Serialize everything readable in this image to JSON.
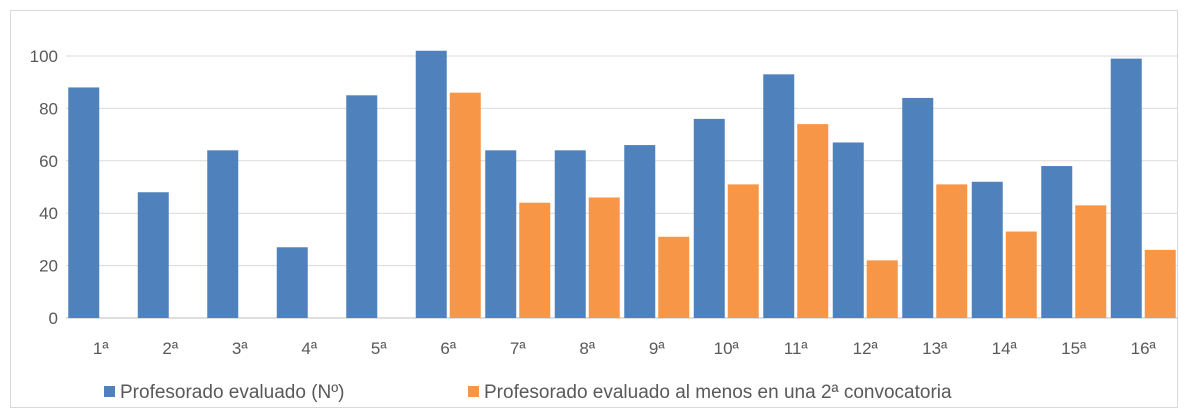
{
  "chart_data": {
    "type": "bar",
    "categories": [
      "1ª",
      "2ª",
      "3ª",
      "4ª",
      "5ª",
      "6ª",
      "7ª",
      "8ª",
      "9ª",
      "10ª",
      "11ª",
      "12ª",
      "13ª",
      "14ª",
      "15ª",
      "16ª"
    ],
    "series": [
      {
        "name": "Profesorado evaluado (Nº)",
        "color": "#4f81bd",
        "values": [
          88,
          48,
          64,
          27,
          85,
          102,
          64,
          64,
          66,
          76,
          93,
          67,
          84,
          52,
          58,
          99
        ]
      },
      {
        "name": "Profesorado evaluado al menos en una 2ª convocatoria",
        "color": "#f79646",
        "values": [
          null,
          null,
          null,
          null,
          null,
          86,
          44,
          46,
          31,
          51,
          74,
          22,
          51,
          33,
          43,
          26
        ]
      }
    ],
    "yticks": [
      0,
      20,
      40,
      60,
      80,
      100
    ],
    "ylim": [
      0,
      100
    ],
    "grid": true,
    "legend": "bottom",
    "title": "",
    "xlabel": "",
    "ylabel": ""
  }
}
